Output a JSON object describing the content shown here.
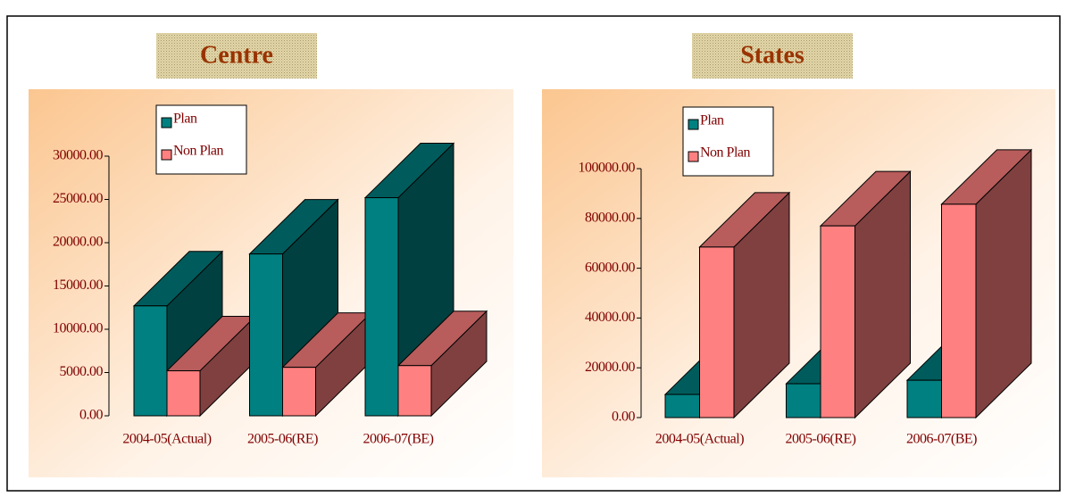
{
  "chart_data": [
    {
      "type": "bar3d",
      "title": "Centre",
      "categories": [
        "2004-05(Actual)",
        "2005-06(RE)",
        "2006-07(BE)"
      ],
      "series": [
        {
          "name": "Plan",
          "color": "#008080",
          "values": [
            12700,
            18700,
            25200
          ]
        },
        {
          "name": "Non Plan",
          "color": "#ff8080",
          "values": [
            5200,
            5600,
            5800
          ]
        }
      ],
      "ylim": [
        0,
        30000
      ],
      "yticks": [
        {
          "value": 0,
          "label": "0.00"
        },
        {
          "value": 5000,
          "label": "5000.00"
        },
        {
          "value": 10000,
          "label": "10000.00"
        },
        {
          "value": 15000,
          "label": "15000.00"
        },
        {
          "value": 20000,
          "label": "20000.00"
        },
        {
          "value": 25000,
          "label": "25000.00"
        },
        {
          "value": 30000,
          "label": "30000.00"
        }
      ],
      "legend": "upper left"
    },
    {
      "type": "bar3d",
      "title": "States",
      "categories": [
        "2004-05(Actual)",
        "2005-06(RE)",
        "2006-07(BE)"
      ],
      "series": [
        {
          "name": "Plan",
          "color": "#008080",
          "values": [
            9300,
            13600,
            15000
          ]
        },
        {
          "name": "Non Plan",
          "color": "#ff8080",
          "values": [
            68500,
            77000,
            85700
          ]
        }
      ],
      "ylim": [
        0,
        100000
      ],
      "yticks": [
        {
          "value": 0,
          "label": "0.00"
        },
        {
          "value": 20000,
          "label": "20000.00"
        },
        {
          "value": 40000,
          "label": "40000.00"
        },
        {
          "value": 60000,
          "label": "60000.00"
        },
        {
          "value": 80000,
          "label": "80000.00"
        },
        {
          "value": 100000,
          "label": "100000.00"
        }
      ],
      "legend": "upper left"
    }
  ]
}
